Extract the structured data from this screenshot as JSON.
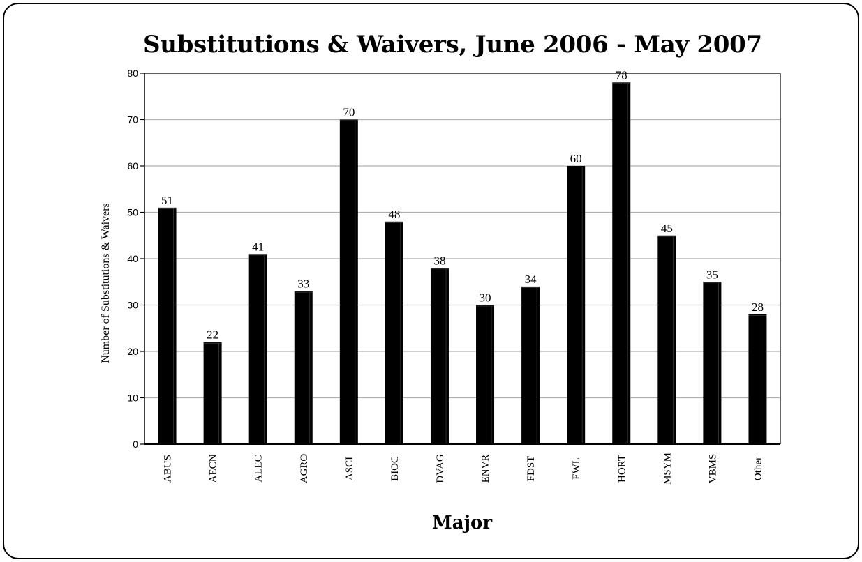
{
  "chart_data": {
    "type": "bar",
    "title": "Substitutions & Waivers, June 2006 - May 2007",
    "xlabel": "Major",
    "ylabel": "Number of Substitutions & Waivers",
    "categories": [
      "ABUS",
      "AECN",
      "ALEC",
      "AGRO",
      "ASCI",
      "BIOC",
      "DVAG",
      "ENVR",
      "FDST",
      "FWL",
      "HORT",
      "MSYM",
      "VBMS",
      "Other"
    ],
    "values": [
      51,
      22,
      41,
      33,
      70,
      48,
      38,
      30,
      34,
      60,
      78,
      45,
      35,
      28
    ],
    "data_labels": [
      "51",
      "22",
      "41",
      "33",
      "70",
      "48",
      "38",
      "30",
      "34",
      "60",
      "78",
      "45",
      "35",
      "28"
    ],
    "ylim": [
      0,
      80
    ],
    "yticks": [
      0,
      10,
      20,
      30,
      40,
      50,
      60,
      70,
      80
    ],
    "ytick_labels": [
      "0",
      "10",
      "20",
      "30",
      "40",
      "50",
      "60",
      "70",
      "80"
    ],
    "grid": true,
    "legend": "none",
    "bar_color": "#000000",
    "grid_color": "#b0b0b0"
  }
}
